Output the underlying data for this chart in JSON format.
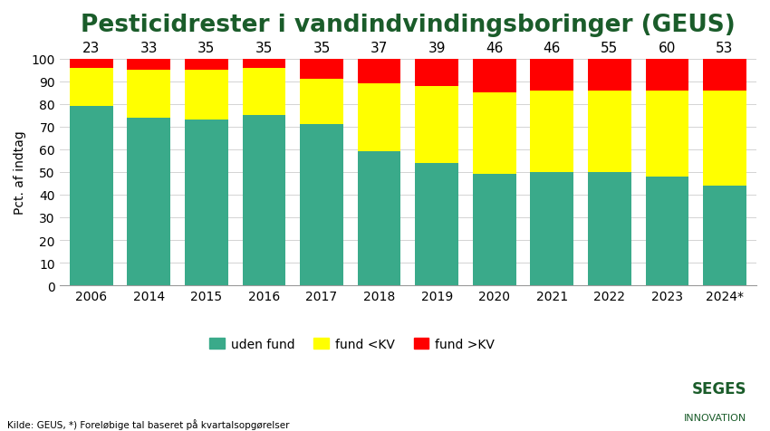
{
  "title": "Pesticidrester i vandindvindingsboringer (GEUS)",
  "ylabel": "Pct. af indtag",
  "years": [
    "2006",
    "2014",
    "2015",
    "2016",
    "2017",
    "2018",
    "2019",
    "2020",
    "2021",
    "2022",
    "2023",
    "2024*"
  ],
  "labels_above": [
    23,
    33,
    35,
    35,
    35,
    37,
    39,
    46,
    46,
    55,
    60,
    53
  ],
  "uden_fund": [
    79,
    74,
    73,
    75,
    71,
    59,
    54,
    49,
    50,
    50,
    48,
    44
  ],
  "fund_under_kv": [
    17,
    21,
    22,
    21,
    20,
    30,
    34,
    36,
    36,
    36,
    38,
    42
  ],
  "fund_over_kv": [
    4,
    5,
    5,
    4,
    9,
    11,
    12,
    15,
    14,
    14,
    14,
    14
  ],
  "color_teal": "#3aaa8a",
  "color_yellow": "#ffff00",
  "color_red": "#ff0000",
  "title_color": "#1a5c2a",
  "legend_labels": [
    "uden fund",
    "fund <KV",
    "fund >KV"
  ],
  "source_text": "Kilde: GEUS, *) Foreløbige tal baseret på kvartalsopgørelser",
  "seges_line1": "SEGES",
  "seges_line2": "INNOVATION",
  "seges_color": "#1a5c2a",
  "background_color": "#ffffff",
  "title_fontsize": 19,
  "axis_fontsize": 10,
  "label_fontsize": 11,
  "ylim": [
    0,
    100
  ],
  "yticks": [
    0,
    10,
    20,
    30,
    40,
    50,
    60,
    70,
    80,
    90,
    100
  ]
}
